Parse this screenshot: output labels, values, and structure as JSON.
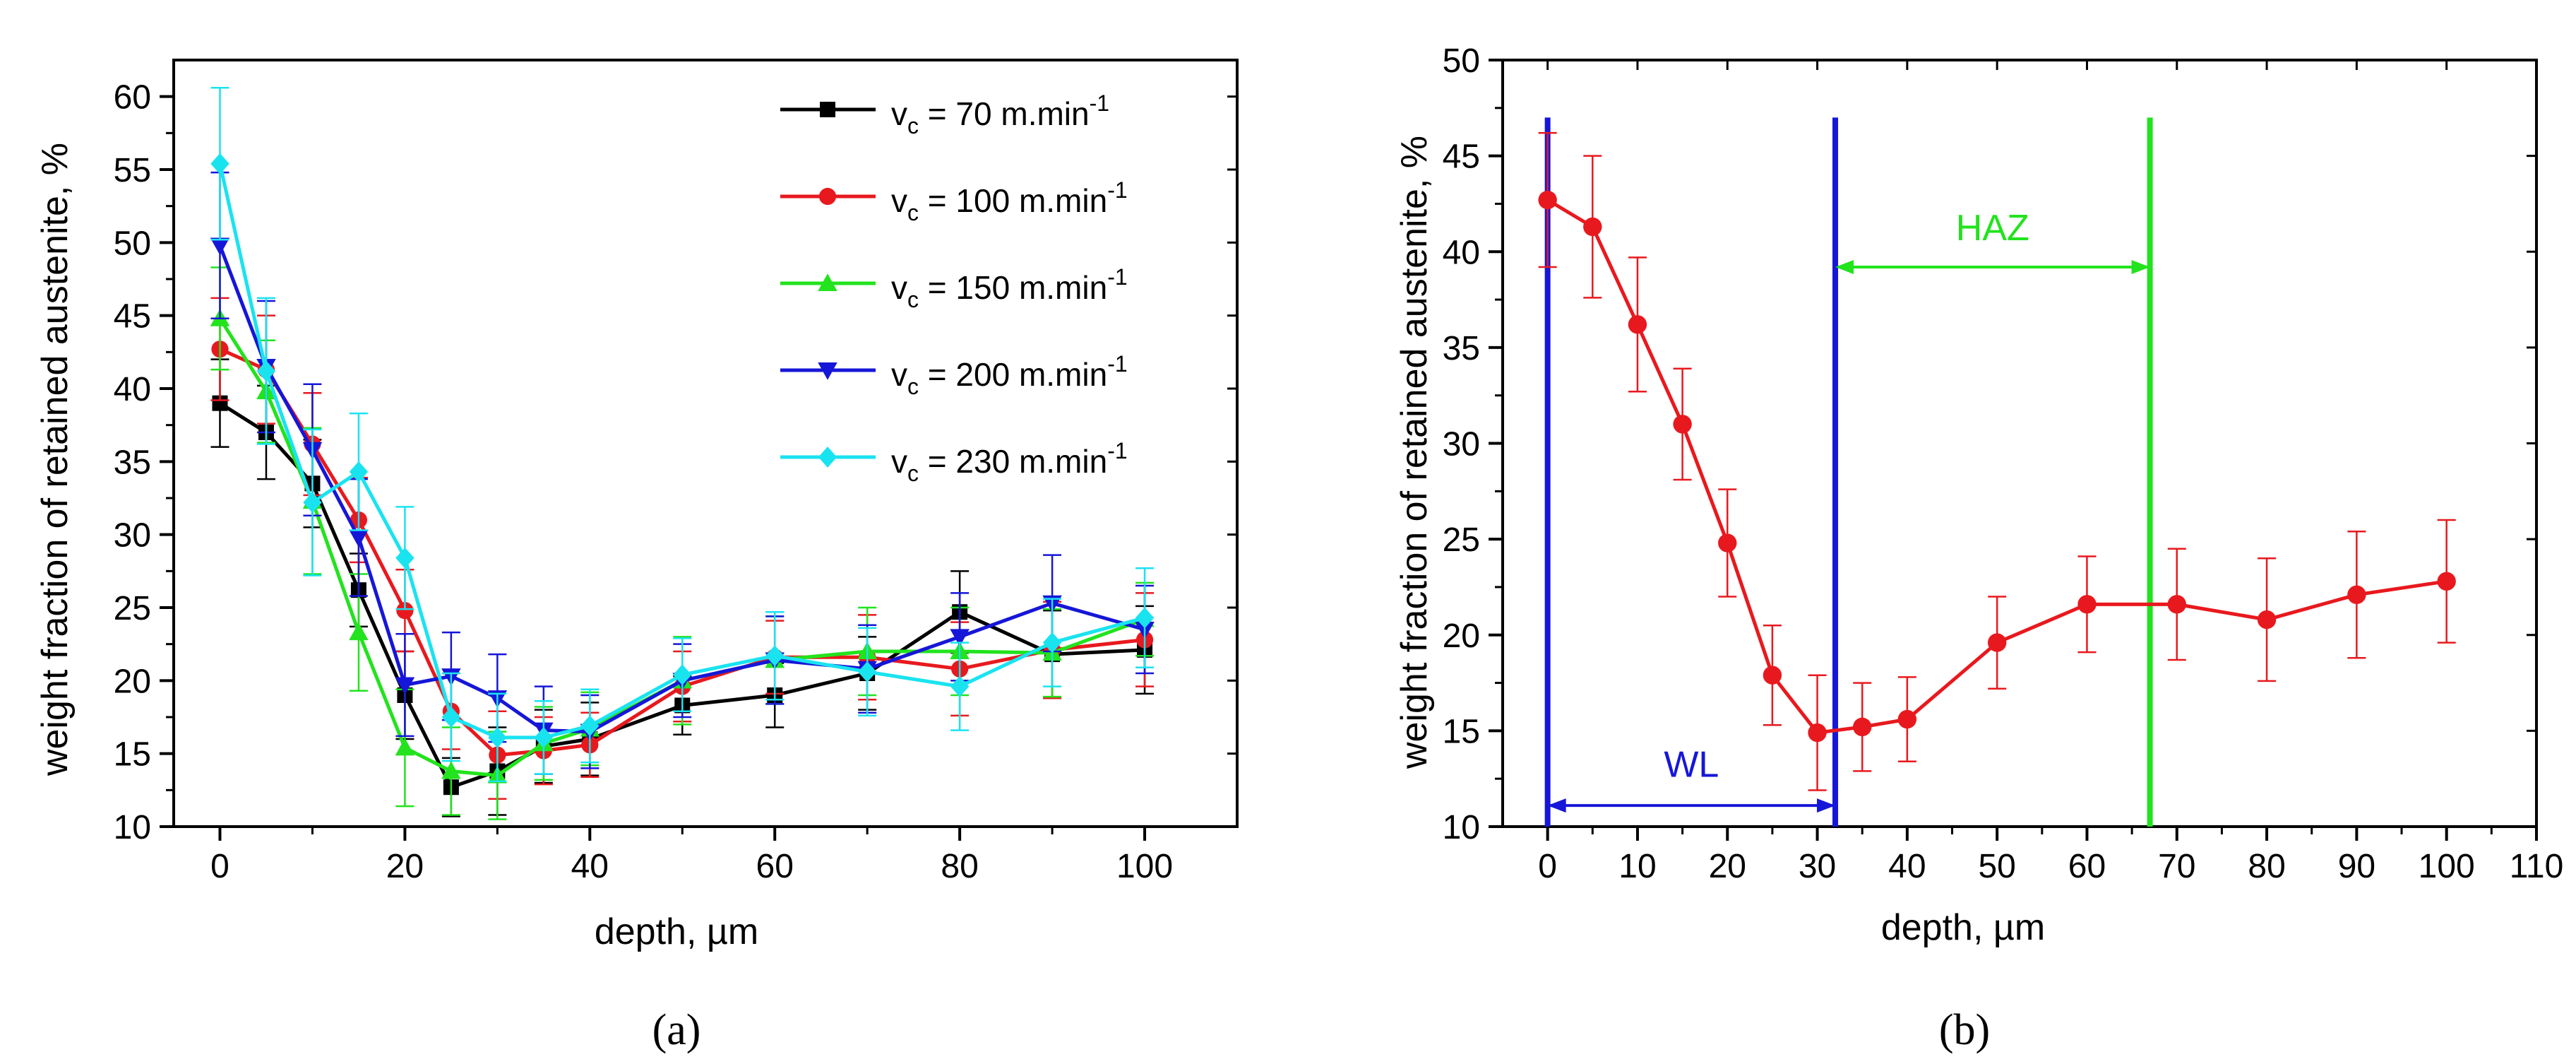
{
  "chart_data": [
    {
      "id": "a",
      "type": "line",
      "panel_label": "(a)",
      "xlabel": "depth, µm",
      "ylabel": "weight fraction of retained austenite, %",
      "xlim": [
        -5,
        110
      ],
      "ylim": [
        10,
        62.5
      ],
      "xticks": [
        0,
        20,
        40,
        60,
        80,
        100
      ],
      "yticks": [
        10,
        15,
        20,
        25,
        30,
        35,
        40,
        45,
        50,
        55,
        60
      ],
      "x": [
        0,
        5,
        10,
        15,
        20,
        25,
        30,
        35,
        40,
        50,
        60,
        70,
        80,
        90,
        100
      ],
      "series": [
        {
          "name": "70",
          "legend_prefix": "v",
          "legend_sub": "c",
          "legend_text": " = 70 m.min",
          "legend_sup": "-1",
          "color": "#000000",
          "marker": "square",
          "values": [
            39,
            37,
            33.5,
            26.2,
            19,
            12.7,
            13.8,
            15.5,
            16,
            18.3,
            19,
            20.5,
            24.7,
            21.8,
            22.1
          ],
          "errors": [
            3,
            3.2,
            3,
            2.5,
            3,
            2,
            3,
            2.5,
            2.5,
            2,
            2.2,
            2.5,
            2.8,
            3,
            3
          ]
        },
        {
          "name": "100",
          "legend_prefix": "v",
          "legend_sub": "c",
          "legend_text": " = 100 m.min",
          "legend_sup": "-1",
          "color": "#e8191e",
          "marker": "circle",
          "values": [
            42.7,
            41.3,
            36.2,
            31,
            24.8,
            17.9,
            14.9,
            15.2,
            15.6,
            19.6,
            21.6,
            21.6,
            20.8,
            22.1,
            22.8
          ],
          "errors": [
            3.5,
            3.7,
            3.5,
            2.9,
            2.8,
            2.6,
            3,
            2.3,
            2.2,
            2.4,
            2.5,
            2.9,
            3.2,
            3.3,
            3.2
          ]
        },
        {
          "name": "150",
          "legend_prefix": "v",
          "legend_sub": "c",
          "legend_text": " = 150 m.min",
          "legend_sup": "-1",
          "color": "#22e31d",
          "marker": "triangle-up",
          "values": [
            44.8,
            39.8,
            32.3,
            23.3,
            15.4,
            13.8,
            13.5,
            15.7,
            16.7,
            20,
            21.4,
            22,
            22,
            21.9,
            24.2
          ],
          "errors": [
            3.5,
            3.5,
            5,
            4,
            4,
            3,
            3,
            2.5,
            2.5,
            3,
            3,
            3,
            3,
            3,
            2.5
          ]
        },
        {
          "name": "200",
          "legend_prefix": "v",
          "legend_sub": "c",
          "legend_text": " = 200 m.min",
          "legend_sup": "-1",
          "color": "#1616d8",
          "marker": "triangle-down",
          "values": [
            49.8,
            41.5,
            35.8,
            29.8,
            19.7,
            20.3,
            18.8,
            16.6,
            16.5,
            20,
            21.4,
            20.8,
            23,
            25.3,
            23.5
          ],
          "errors": [
            5,
            4.5,
            4.5,
            4,
            3.5,
            3,
            3,
            3,
            2.5,
            2.5,
            3,
            3,
            3,
            3.3,
            3
          ]
        },
        {
          "name": "230",
          "legend_prefix": "v",
          "legend_sub": "c",
          "legend_text": " = 230 m.min",
          "legend_sup": "-1",
          "color": "#1ae3f0",
          "marker": "diamond",
          "values": [
            55.4,
            41.2,
            32.2,
            34.3,
            28.4,
            17.5,
            16.1,
            16.1,
            16.9,
            20.4,
            21.7,
            20.6,
            19.6,
            22.6,
            24.3
          ],
          "errors": [
            5.2,
            5,
            5,
            4,
            3.5,
            3,
            3,
            2.5,
            2.5,
            2.5,
            3,
            3,
            3,
            3,
            3.4
          ]
        }
      ]
    },
    {
      "id": "b",
      "type": "line",
      "panel_label": "(b)",
      "xlabel": "depth, µm",
      "ylabel": "weight fraction of retained austenite, %",
      "xlim": [
        -5,
        110
      ],
      "ylim": [
        10,
        50
      ],
      "xticks": [
        0,
        10,
        20,
        30,
        40,
        50,
        60,
        70,
        80,
        90,
        100,
        110
      ],
      "yticks": [
        10,
        15,
        20,
        25,
        30,
        35,
        40,
        45,
        50
      ],
      "x": [
        0,
        5,
        10,
        15,
        20,
        25,
        30,
        35,
        40,
        50,
        60,
        70,
        80,
        90,
        100
      ],
      "series": [
        {
          "name": "100",
          "color": "#e8191e",
          "marker": "circle",
          "values": [
            42.7,
            41.3,
            36.2,
            31,
            24.8,
            17.9,
            14.9,
            15.2,
            15.6,
            19.6,
            21.6,
            21.6,
            20.8,
            22.1,
            22.8
          ],
          "errors": [
            3.5,
            3.7,
            3.5,
            2.9,
            2.8,
            2.6,
            3,
            2.3,
            2.2,
            2.4,
            2.5,
            2.9,
            3.2,
            3.3,
            3.2
          ]
        }
      ],
      "vlines": [
        {
          "x": 0,
          "y_top": 47,
          "color": "#1616d8"
        },
        {
          "x": 32,
          "y_top": 47,
          "color": "#1616d8"
        },
        {
          "x": 67,
          "y_top": 47,
          "color": "#22e31d"
        }
      ],
      "annotations": [
        {
          "label": "WL",
          "x_from": 0,
          "x_to": 32,
          "arrow_y": 11.1,
          "text_y": 12.6,
          "color": "#1616d8"
        },
        {
          "label": "HAZ",
          "x_from": 32,
          "x_to": 67,
          "arrow_y": 39.2,
          "text_y": 40.6,
          "color": "#22e31d"
        }
      ]
    }
  ]
}
